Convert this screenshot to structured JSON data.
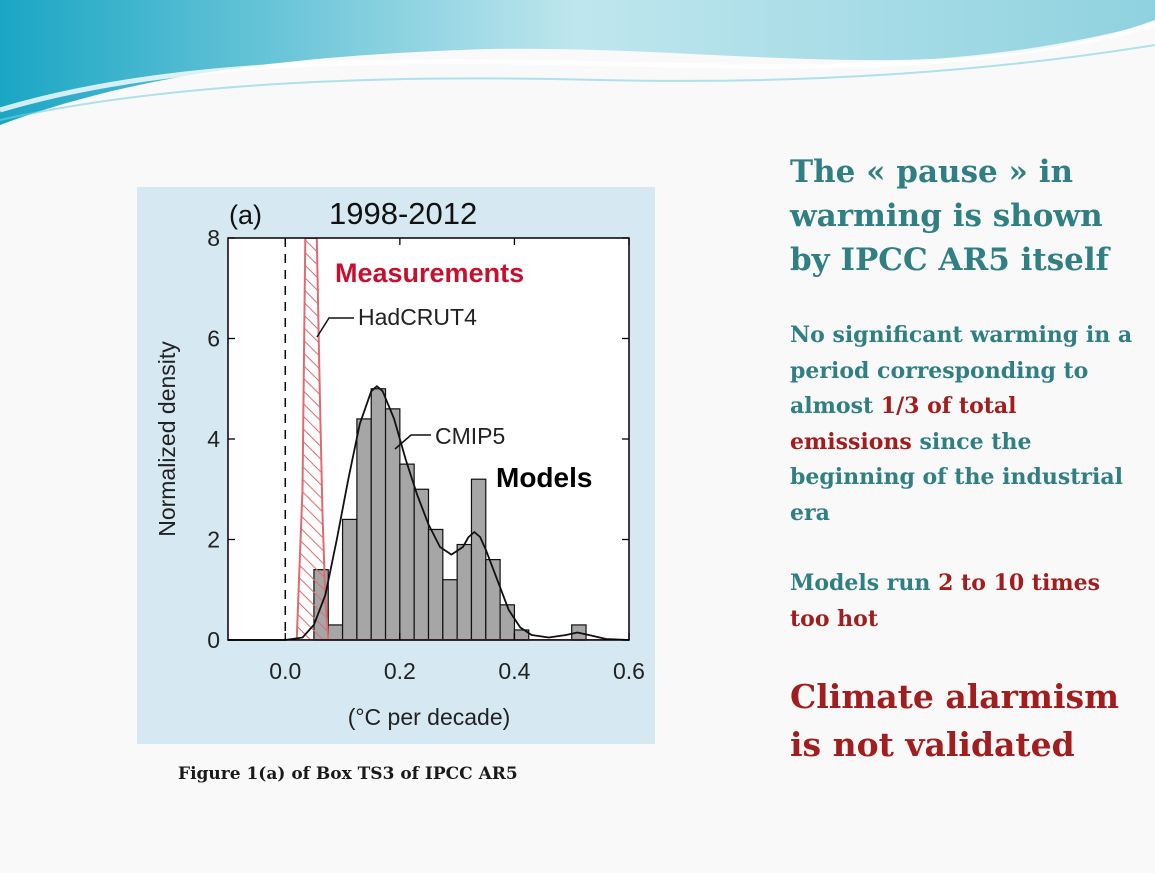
{
  "chart_data": {
    "type": "bar",
    "panel_label": "(a)",
    "title": "1998-2012",
    "xlabel": "(°C per decade)",
    "ylabel": "Normalized density",
    "xlim": [
      -0.1,
      0.6
    ],
    "ylim": [
      0,
      8
    ],
    "x_ticks": [
      0.0,
      0.2,
      0.4,
      0.6
    ],
    "x_tick_labels": [
      "0.0",
      "0.2",
      "0.4",
      "0.6"
    ],
    "y_ticks": [
      0,
      2,
      4,
      6,
      8
    ],
    "y_tick_labels": [
      "0",
      "2",
      "4",
      "6",
      "8"
    ],
    "bin_width": 0.025,
    "series": [
      {
        "name": "CMIP5",
        "kind": "histogram",
        "bin_starts": [
          0.05,
          0.075,
          0.1,
          0.125,
          0.15,
          0.175,
          0.2,
          0.225,
          0.25,
          0.275,
          0.3,
          0.325,
          0.35,
          0.375,
          0.4,
          0.425,
          0.45,
          0.475,
          0.5
        ],
        "values": [
          1.4,
          0.3,
          2.4,
          4.4,
          5.0,
          4.6,
          3.5,
          3.0,
          2.2,
          1.2,
          1.9,
          3.2,
          1.6,
          0.7,
          0.2,
          0,
          0,
          0,
          0.3
        ],
        "curve_x": [
          -0.1,
          0.0,
          0.03,
          0.05,
          0.07,
          0.09,
          0.11,
          0.13,
          0.15,
          0.16,
          0.17,
          0.19,
          0.21,
          0.23,
          0.25,
          0.27,
          0.29,
          0.31,
          0.32,
          0.33,
          0.34,
          0.35,
          0.37,
          0.39,
          0.41,
          0.43,
          0.46,
          0.49,
          0.51,
          0.53,
          0.56,
          0.6
        ],
        "curve_y": [
          0,
          0,
          0.05,
          0.3,
          0.9,
          2.0,
          3.2,
          4.3,
          4.95,
          5.05,
          4.95,
          4.4,
          3.6,
          2.9,
          2.3,
          1.85,
          1.7,
          1.85,
          2.05,
          2.15,
          2.05,
          1.8,
          1.2,
          0.6,
          0.25,
          0.1,
          0.05,
          0.1,
          0.15,
          0.1,
          0.02,
          0
        ],
        "color": "#999999"
      },
      {
        "name": "HadCRUT4",
        "kind": "hatched-band",
        "density_x": [
          -0.1,
          0.02,
          0.03,
          0.035,
          0.045,
          0.055,
          0.06,
          0.065,
          0.07,
          0.075,
          0.6
        ],
        "density_y": [
          0,
          0,
          3,
          8,
          8,
          8,
          5,
          2.5,
          0.8,
          0,
          0
        ],
        "color": "#e06a72"
      }
    ],
    "annotations": [
      "HadCRUT4",
      "CMIP5",
      "Measurements",
      "Models"
    ],
    "colors": {
      "measurements_label": "#c8102e",
      "models_label": "#000000",
      "panel_background": "#d6e8f2"
    }
  },
  "caption": "Figure 1(a) of Box TS3 of IPCC AR5",
  "right_panel": {
    "headline": "The « pause » in warming is shown by IPCC AR5 itself",
    "body_teal": "No significant warming in a period corresponding to almost",
    "body_red": "1/3 of total emissions",
    "body_teal_2": "since the beginning of the industrial era",
    "models_teal": "Models run",
    "models_red": "2 to 10 times too  hot",
    "conclusion": "Climate alarmism is not validated",
    "colors": {
      "teal": "#2f7f83",
      "red": "#a21e1e"
    }
  }
}
